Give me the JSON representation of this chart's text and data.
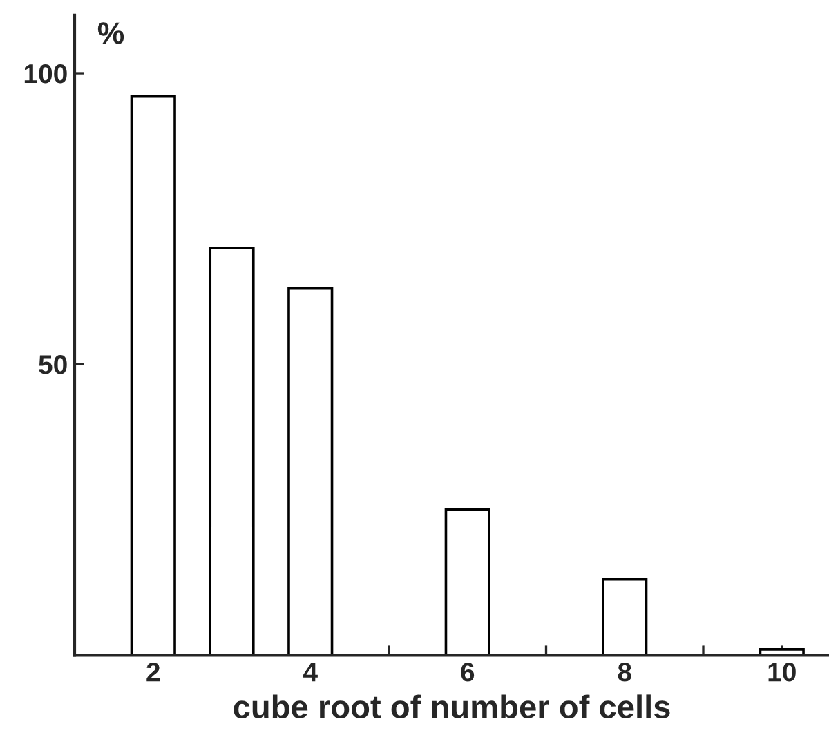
{
  "chart_data": {
    "type": "bar",
    "xlabel": "cube root of number of cells",
    "ylabel": "%",
    "x": [
      2,
      3,
      4,
      6,
      8,
      10
    ],
    "series": [
      {
        "color": "#ffffff",
        "values": [
          96,
          70,
          63,
          25,
          13,
          1
        ]
      }
    ],
    "xlim": [
      1,
      10.6
    ],
    "ylim": [
      0,
      110
    ],
    "xticks": [
      {
        "value": 1,
        "label": null
      },
      2,
      {
        "value": 3,
        "label": null
      },
      4,
      {
        "value": 5,
        "label": null
      },
      6,
      {
        "value": 7,
        "label": null
      },
      8,
      {
        "value": 9,
        "label": null
      },
      10
    ],
    "yticks": [
      50,
      100
    ],
    "grid": false,
    "legend": false
  }
}
